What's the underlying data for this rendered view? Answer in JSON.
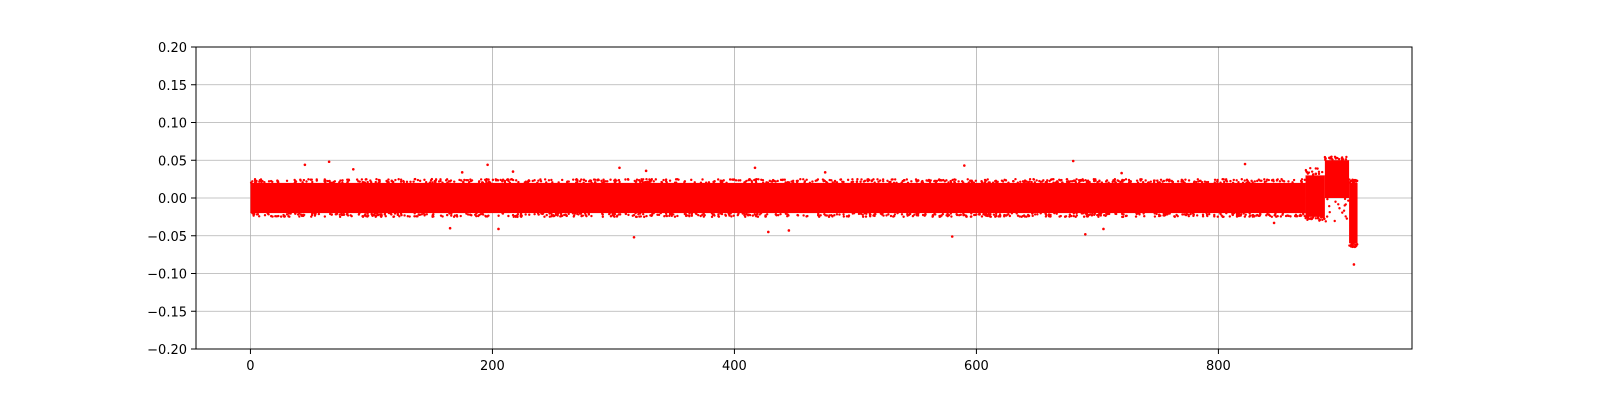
{
  "chart_data": {
    "type": "scatter",
    "title": "",
    "xlabel": "",
    "ylabel": "",
    "xlim": [
      -45,
      960
    ],
    "ylim": [
      -0.2,
      0.2
    ],
    "grid": true,
    "legend": "none",
    "marker_color": "#ff0000",
    "x_ticks": [
      0,
      200,
      400,
      600,
      800
    ],
    "x_tick_labels": [
      "0",
      "200",
      "400",
      "600",
      "800"
    ],
    "y_ticks": [
      -0.2,
      -0.15,
      -0.1,
      -0.05,
      0.0,
      0.05,
      0.1,
      0.15,
      0.2
    ],
    "y_tick_labels": [
      "−0.20",
      "−0.15",
      "−0.10",
      "−0.05",
      "0.00",
      "0.05",
      "0.10",
      "0.15",
      "0.20"
    ],
    "series": [
      {
        "x_range": [
          0,
          915
        ],
        "segments": [
          {
            "x": [
              0,
              872
            ],
            "low": -0.025,
            "high": 0.025,
            "core_low": -0.02,
            "core_high": 0.02
          },
          {
            "x": [
              872,
              888
            ],
            "low": -0.03,
            "high": 0.04,
            "core_low": -0.025,
            "core_high": 0.03
          },
          {
            "x": [
              888,
              908
            ],
            "low": -0.04,
            "high": 0.055,
            "core_low": 0.0,
            "core_high": 0.05
          },
          {
            "x": [
              908,
              915
            ],
            "low": -0.065,
            "high": 0.025,
            "core_low": -0.06,
            "core_high": 0.02
          }
        ],
        "outliers": [
          {
            "x": 45,
            "y": 0.044
          },
          {
            "x": 65,
            "y": 0.048
          },
          {
            "x": 85,
            "y": 0.038
          },
          {
            "x": 175,
            "y": 0.034
          },
          {
            "x": 196,
            "y": 0.044
          },
          {
            "x": 205,
            "y": -0.041
          },
          {
            "x": 165,
            "y": -0.04
          },
          {
            "x": 217,
            "y": 0.035
          },
          {
            "x": 305,
            "y": 0.04
          },
          {
            "x": 317,
            "y": -0.052
          },
          {
            "x": 327,
            "y": 0.036
          },
          {
            "x": 417,
            "y": 0.04
          },
          {
            "x": 428,
            "y": -0.045
          },
          {
            "x": 445,
            "y": -0.043
          },
          {
            "x": 475,
            "y": 0.034
          },
          {
            "x": 580,
            "y": -0.051
          },
          {
            "x": 590,
            "y": 0.043
          },
          {
            "x": 680,
            "y": 0.049
          },
          {
            "x": 690,
            "y": -0.048
          },
          {
            "x": 705,
            "y": -0.041
          },
          {
            "x": 720,
            "y": 0.033
          },
          {
            "x": 822,
            "y": 0.045
          },
          {
            "x": 846,
            "y": -0.033
          },
          {
            "x": 912,
            "y": -0.088
          }
        ]
      }
    ]
  }
}
